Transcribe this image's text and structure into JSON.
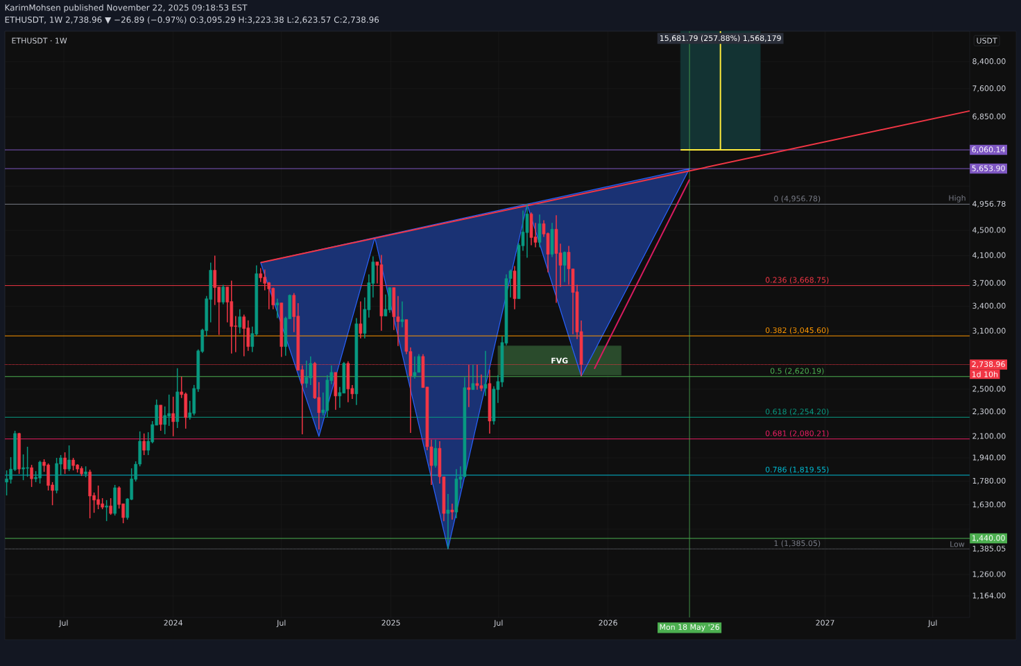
{
  "chart_data": {
    "type": "candlestick",
    "title": "KarimMohsen published November 22, 2025 09:18:53 EST",
    "subtitle": "ETHUSDT, 1W  2,738.96 ▼ −26.89 (−0.97%) O:3,095.29 H:3,223.38 L:2,623.57 C:2,738.96",
    "x": [
      "2023-03-27",
      "2023-04-03",
      "2023-04-10",
      "2023-04-17",
      "2023-04-24",
      "2023-05-01",
      "2023-05-08",
      "2023-05-15",
      "2023-05-22",
      "2023-05-29",
      "2023-06-05",
      "2023-06-12",
      "2023-06-19",
      "2023-06-26",
      "2023-07-03",
      "2023-07-10",
      "2023-07-17",
      "2023-07-24",
      "2023-07-31",
      "2023-08-07",
      "2023-08-14",
      "2023-08-21",
      "2023-08-28",
      "2023-09-04",
      "2023-09-11",
      "2023-09-18",
      "2023-09-25",
      "2023-10-02",
      "2023-10-09",
      "2023-10-16",
      "2023-10-23",
      "2023-10-30",
      "2023-11-06",
      "2023-11-13",
      "2023-11-20",
      "2023-11-27",
      "2023-12-04",
      "2023-12-11",
      "2023-12-18",
      "2023-12-25",
      "2024-01-01",
      "2024-01-08",
      "2024-01-15",
      "2024-01-22",
      "2024-01-29",
      "2024-02-05",
      "2024-02-12",
      "2024-02-19",
      "2024-02-26",
      "2024-03-04",
      "2024-03-11",
      "2024-03-18",
      "2024-03-25",
      "2024-04-01",
      "2024-04-08",
      "2024-04-15",
      "2024-04-22",
      "2024-04-29",
      "2024-05-06",
      "2024-05-13",
      "2024-05-20",
      "2024-05-27",
      "2024-06-03",
      "2024-06-10",
      "2024-06-17",
      "2024-06-24",
      "2024-07-01",
      "2024-07-08",
      "2024-07-15",
      "2024-07-22",
      "2024-07-29",
      "2024-08-05",
      "2024-08-12",
      "2024-08-19",
      "2024-08-26",
      "2024-09-02",
      "2024-09-09",
      "2024-09-16",
      "2024-09-23",
      "2024-09-30",
      "2024-10-07",
      "2024-10-14",
      "2024-10-21",
      "2024-10-28",
      "2024-11-04",
      "2024-11-11",
      "2024-11-18",
      "2024-11-25",
      "2024-12-02",
      "2024-12-09",
      "2024-12-16",
      "2024-12-23",
      "2024-12-30",
      "2025-01-06",
      "2025-01-13",
      "2025-01-20",
      "2025-01-27",
      "2025-02-03",
      "2025-02-10",
      "2025-02-17",
      "2025-02-24",
      "2025-03-03",
      "2025-03-10",
      "2025-03-17",
      "2025-03-24",
      "2025-03-31",
      "2025-04-07",
      "2025-04-14",
      "2025-04-21",
      "2025-04-28",
      "2025-05-05",
      "2025-05-12",
      "2025-05-19",
      "2025-05-26",
      "2025-06-02",
      "2025-06-09",
      "2025-06-16",
      "2025-06-23",
      "2025-06-30",
      "2025-07-07",
      "2025-07-14",
      "2025-07-21",
      "2025-07-28",
      "2025-08-04",
      "2025-08-11",
      "2025-08-18",
      "2025-08-25",
      "2025-09-01",
      "2025-09-08",
      "2025-09-15",
      "2025-09-22",
      "2025-09-29",
      "2025-10-06",
      "2025-10-13",
      "2025-10-20",
      "2025-10-27",
      "2025-11-03",
      "2025-11-10",
      "2025-11-17"
    ],
    "ohlc": [
      [
        1773,
        1852,
        1688,
        1795
      ],
      [
        1791,
        1945,
        1764,
        1861
      ],
      [
        1857,
        2144,
        1847,
        2123
      ],
      [
        2123,
        2128,
        1828,
        1861
      ],
      [
        1861,
        1965,
        1786,
        1871
      ],
      [
        1866,
        2021,
        1809,
        1871
      ],
      [
        1871,
        1890,
        1742,
        1795
      ],
      [
        1795,
        1847,
        1773,
        1805
      ],
      [
        1800,
        1920,
        1764,
        1910
      ],
      [
        1910,
        1930,
        1842,
        1885
      ],
      [
        1890,
        1900,
        1719,
        1751
      ],
      [
        1755,
        1773,
        1628,
        1719
      ],
      [
        1719,
        1940,
        1701,
        1900
      ],
      [
        1895,
        1960,
        1818,
        1940
      ],
      [
        1940,
        1980,
        1828,
        1861
      ],
      [
        1861,
        2031,
        1847,
        1925
      ],
      [
        1925,
        1940,
        1852,
        1885
      ],
      [
        1890,
        1895,
        1837,
        1861
      ],
      [
        1866,
        1880,
        1814,
        1828
      ],
      [
        1828,
        1880,
        1805,
        1842
      ],
      [
        1842,
        1857,
        1551,
        1684
      ],
      [
        1688,
        1706,
        1583,
        1659
      ],
      [
        1663,
        1751,
        1604,
        1632
      ],
      [
        1637,
        1671,
        1604,
        1616
      ],
      [
        1616,
        1659,
        1535,
        1624
      ],
      [
        1624,
        1671,
        1571,
        1579
      ],
      [
        1579,
        1755,
        1567,
        1737
      ],
      [
        1737,
        1746,
        1608,
        1632
      ],
      [
        1637,
        1637,
        1523,
        1555
      ],
      [
        1555,
        1671,
        1543,
        1667
      ],
      [
        1663,
        1866,
        1659,
        1795
      ],
      [
        1791,
        1915,
        1777,
        1895
      ],
      [
        1895,
        2139,
        1880,
        2063
      ],
      [
        2063,
        2123,
        1960,
        1995
      ],
      [
        1995,
        2133,
        1960,
        2063
      ],
      [
        2057,
        2222,
        2047,
        2194
      ],
      [
        2188,
        2407,
        2188,
        2358
      ],
      [
        2358,
        2358,
        2144,
        2194
      ],
      [
        2194,
        2346,
        2117,
        2269
      ],
      [
        2263,
        2451,
        2183,
        2286
      ],
      [
        2286,
        2432,
        2101,
        2217
      ],
      [
        2217,
        2702,
        2166,
        2476
      ],
      [
        2476,
        2620,
        2420,
        2451
      ],
      [
        2457,
        2470,
        2161,
        2251
      ],
      [
        2251,
        2395,
        2234,
        2292
      ],
      [
        2286,
        2540,
        2269,
        2508
      ],
      [
        2502,
        2897,
        2476,
        2882
      ],
      [
        2875,
        3128,
        2860,
        3113
      ],
      [
        3105,
        3530,
        3041,
        3494
      ],
      [
        3485,
        3994,
        3202,
        3883
      ],
      [
        3883,
        4098,
        3414,
        3641
      ],
      [
        3650,
        3650,
        3057,
        3450
      ],
      [
        3450,
        3679,
        3423,
        3650
      ],
      [
        3650,
        3650,
        3202,
        3450
      ],
      [
        3459,
        3736,
        2853,
        3153
      ],
      [
        3161,
        3277,
        2868,
        3153
      ],
      [
        3145,
        3361,
        3073,
        3269
      ],
      [
        3269,
        3294,
        2824,
        3129
      ],
      [
        3137,
        3227,
        2882,
        2927
      ],
      [
        2927,
        3153,
        2868,
        3073
      ],
      [
        3065,
        3954,
        3049,
        3834
      ],
      [
        3834,
        3913,
        3717,
        3775
      ],
      [
        3785,
        3893,
        3604,
        3698
      ],
      [
        3708,
        3717,
        3361,
        3623
      ],
      [
        3632,
        3641,
        3361,
        3414
      ],
      [
        3414,
        3494,
        3252,
        3441
      ],
      [
        3441,
        3441,
        2817,
        2927
      ],
      [
        2927,
        3269,
        2831,
        3252
      ],
      [
        3244,
        3549,
        3244,
        3540
      ],
      [
        3540,
        3567,
        3089,
        3269
      ],
      [
        3277,
        3437,
        2681,
        2681
      ],
      [
        2688,
        2730,
        2117,
        2554
      ],
      [
        2554,
        2780,
        2515,
        2613
      ],
      [
        2606,
        2823,
        2540,
        2751
      ],
      [
        2751,
        2765,
        2413,
        2420
      ],
      [
        2426,
        2567,
        2155,
        2292
      ],
      [
        2292,
        2470,
        2269,
        2316
      ],
      [
        2310,
        2634,
        2257,
        2587
      ],
      [
        2580,
        2730,
        2547,
        2661
      ],
      [
        2661,
        2661,
        2316,
        2438
      ],
      [
        2438,
        2521,
        2334,
        2470
      ],
      [
        2464,
        2765,
        2464,
        2751
      ],
      [
        2751,
        2773,
        2383,
        2502
      ],
      [
        2508,
        2540,
        2413,
        2457
      ],
      [
        2457,
        3252,
        2358,
        3185
      ],
      [
        3185,
        3459,
        3018,
        3073
      ],
      [
        3073,
        3512,
        3018,
        3361
      ],
      [
        3353,
        3823,
        3260,
        3708
      ],
      [
        3698,
        4088,
        3512,
        4004
      ],
      [
        4004,
        4004,
        3698,
        3954
      ],
      [
        3964,
        4109,
        3105,
        3277
      ],
      [
        3277,
        3549,
        3277,
        3361
      ],
      [
        3353,
        3641,
        3319,
        3641
      ],
      [
        3641,
        3641,
        3113,
        3269
      ],
      [
        3269,
        3530,
        2934,
        3210
      ],
      [
        3210,
        3459,
        3145,
        3235
      ],
      [
        3235,
        3235,
        2846,
        2875
      ],
      [
        2875,
        2919,
        2127,
        2627
      ],
      [
        2627,
        2823,
        2600,
        2661
      ],
      [
        2661,
        2846,
        2661,
        2823
      ],
      [
        2823,
        2846,
        2515,
        2515
      ],
      [
        2521,
        2521,
        1995,
        2021
      ],
      [
        2021,
        2074,
        1755,
        1885
      ],
      [
        1885,
        2074,
        1871,
        2010
      ],
      [
        2010,
        2063,
        1764,
        1809
      ],
      [
        1809,
        1809,
        1535,
        1579
      ],
      [
        1579,
        1697,
        1385.05,
        1600
      ],
      [
        1600,
        1637,
        1543,
        1587
      ],
      [
        1587,
        1861,
        1551,
        1795
      ],
      [
        1791,
        1880,
        1733,
        1809
      ],
      [
        1809,
        2613,
        1809,
        2515
      ],
      [
        2515,
        2737,
        2340,
        2496
      ],
      [
        2496,
        2737,
        2496,
        2554
      ],
      [
        2554,
        2737,
        2496,
        2534
      ],
      [
        2534,
        2640,
        2483,
        2508
      ],
      [
        2508,
        2882,
        2438,
        2547
      ],
      [
        2554,
        2688,
        2122,
        2222
      ],
      [
        2222,
        2528,
        2194,
        2502
      ],
      [
        2496,
        2634,
        2377,
        2573
      ],
      [
        2567,
        3041,
        2521,
        2972
      ],
      [
        2964,
        3823,
        2942,
        3765
      ],
      [
        3765,
        3893,
        3512,
        3873
      ],
      [
        3873,
        3944,
        3361,
        3494
      ],
      [
        3494,
        4293,
        3494,
        4260
      ],
      [
        4249,
        4841,
        4172,
        4474
      ],
      [
        4462,
        4956.78,
        4067,
        4782
      ],
      [
        4782,
        4808,
        4260,
        4381
      ],
      [
        4393,
        4625,
        4227,
        4304
      ],
      [
        4304,
        4770,
        4227,
        4613
      ],
      [
        4613,
        4672,
        4393,
        4438
      ],
      [
        4450,
        4462,
        3853,
        4119
      ],
      [
        4119,
        4625,
        4077,
        4519
      ],
      [
        4519,
        4757,
        3441,
        4130
      ],
      [
        4141,
        4282,
        3651,
        3954
      ],
      [
        3954,
        4162,
        3717,
        4151
      ],
      [
        4151,
        4249,
        3679,
        3903
      ],
      [
        3903,
        3903,
        3065,
        3576
      ],
      [
        3586,
        3679,
        3010,
        3089
      ],
      [
        3095.29,
        3223.38,
        2623.57,
        2738.96
      ]
    ],
    "series": [
      {
        "type": "area",
        "color": "#2962ff",
        "x": [
          "2024-05-27",
          "2024-09-02",
          "2024-12-05",
          "2025-04-07",
          "2025-08-18",
          "2025-11-17",
          "2026-05-18"
        ],
        "values": [
          3994,
          2100,
          4380,
          1385.05,
          4956.78,
          2623.57,
          5653.9
        ]
      },
      {
        "type": "line",
        "color": "#2a4b2c",
        "x": [
          "2025-06-30",
          "2026-01-23"
        ],
        "values": [
          null,
          null
        ],
        "lower": [
          2634,
          2634
        ],
        "upper": [
          2934,
          2934
        ]
      },
      {
        "type": "line",
        "color": "#133333",
        "x": [
          "2026-05-03",
          "2026-09-14"
        ],
        "values": [
          null,
          null
        ],
        "lower": [
          6060.14,
          6060.14
        ],
        "upper": [
          9400,
          9400
        ]
      },
      {
        "type": "line",
        "color": "#ffeb3b",
        "x": [
          "2026-05-03",
          "2026-09-14"
        ],
        "values": [
          6060.14,
          6060.14
        ]
      },
      {
        "type": "line",
        "color": "#ffeb3b",
        "x": [
          "2026-07-09",
          "2026-07-09"
        ],
        "values": [
          6060.14,
          9400
        ]
      },
      {
        "type": "line",
        "color": "#f23645",
        "x": [
          "2024-05-27",
          "2027-09-01"
        ],
        "values": [
          3994,
          7000
        ]
      },
      {
        "type": "line",
        "color": "#d81b60",
        "x": [
          "2025-12-09",
          "2026-05-18"
        ],
        "values": [
          2695,
          5430
        ]
      }
    ],
    "xlim": [
      "2023-03-24",
      "2027-09-01"
    ],
    "ylim": [
      1075,
      9400
    ],
    "log": true,
    "grid": true,
    "xticks": [
      {
        "value": "2023-07-01",
        "label": "Jul"
      },
      {
        "value": "2024-01-01",
        "label": "2024"
      },
      {
        "value": "2024-07-01",
        "label": "Jul"
      },
      {
        "value": "2025-01-01",
        "label": "2025"
      },
      {
        "value": "2025-07-01",
        "label": "Jul"
      },
      {
        "value": "2026-01-01",
        "label": "2026"
      },
      {
        "value": "2027-01-01",
        "label": "2027"
      },
      {
        "value": "2027-07-01",
        "label": "Jul"
      }
    ],
    "yticks": [
      {
        "value": 1164,
        "label": "1,164.00"
      },
      {
        "value": 1260,
        "label": "1,260.00"
      },
      {
        "value": 1385.05,
        "label": "1,385.05"
      },
      {
        "value": 1490,
        "label": null
      },
      {
        "value": 1630,
        "label": "1,630.00"
      },
      {
        "value": 1780,
        "label": "1,780.00"
      },
      {
        "value": 1940,
        "label": "1,940.00"
      },
      {
        "value": 2100,
        "label": "2,100.00"
      },
      {
        "value": 2300,
        "label": "2,300.00"
      },
      {
        "value": 2500,
        "label": "2,500.00"
      },
      {
        "value": 3100,
        "label": "3,100.00"
      },
      {
        "value": 3400,
        "label": "3,400.00"
      },
      {
        "value": 3700,
        "label": "3,700.00"
      },
      {
        "value": 4100,
        "label": "4,100.00"
      },
      {
        "value": 4500,
        "label": "4,500.00"
      },
      {
        "value": 4956.78,
        "label": "4,956.78"
      },
      {
        "value": 5300,
        "label": null
      },
      {
        "value": 6850,
        "label": "6,850.00"
      },
      {
        "value": 7600,
        "label": "7,600.00"
      },
      {
        "value": 8400,
        "label": "8,400.00"
      }
    ],
    "ref_lines": [
      {
        "axis": "y",
        "value": 6060.14,
        "label": "6,060.14",
        "color": "#7e57c2"
      },
      {
        "axis": "y",
        "value": 5653.9,
        "label": "5,653.90",
        "color": "#7e57c2"
      },
      {
        "axis": "y",
        "value": 4956.78,
        "color": "#787b86"
      },
      {
        "axis": "y",
        "value": 3668.75,
        "color": "#f23645"
      },
      {
        "axis": "y",
        "value": 3045.6,
        "color": "#ff9800"
      },
      {
        "axis": "y",
        "value": 2738.96,
        "label": "2,738.96",
        "color": "#f23645",
        "line_style": "dotted"
      },
      {
        "axis": "y",
        "value": 2620.19,
        "color": "#4caf50"
      },
      {
        "axis": "y",
        "value": 2254.2,
        "color": "#089981"
      },
      {
        "axis": "y",
        "value": 2080.21,
        "color": "#e91e63"
      },
      {
        "axis": "y",
        "value": 1819.55,
        "color": "#00bcd4"
      },
      {
        "axis": "y",
        "value": 1440,
        "label": "1,440.00",
        "color": "#4caf50"
      },
      {
        "axis": "y",
        "value": 1385.05,
        "color": "#787b86",
        "line_style": "dotted"
      },
      {
        "axis": "x",
        "value": "2026-05-18",
        "label": "Mon 18 May '26",
        "color": "#4caf50"
      }
    ],
    "annotations": [
      "ETHUSDT · 1W",
      "USDT",
      {
        "text": "15,681.79 (257.88%) 1,568,179",
        "x": "2026-07-09",
        "y": 9150
      },
      {
        "text": "0 (4,956.78)",
        "x": "2026-11-15",
        "y": 4956.78
      },
      {
        "text": "0.236 (3,668.75)",
        "x": "2026-11-15",
        "y": 3668.75
      },
      {
        "text": "0.382 (3,045.60)",
        "x": "2026-11-15",
        "y": 3045.6
      },
      {
        "text": "0.5 (2,620.19)",
        "x": "2026-11-15",
        "y": 2620.19
      },
      {
        "text": "0.618 (2,254.20)",
        "x": "2026-11-15",
        "y": 2254.2
      },
      {
        "text": "0.681 (2,080.21)",
        "x": "2026-11-15",
        "y": 2080.21
      },
      {
        "text": "0.786 (1,819.55)",
        "x": "2026-11-15",
        "y": 1819.55
      },
      {
        "text": "1 (1,385.05)",
        "x": "2026-11-15",
        "y": 1385.05
      },
      {
        "text": "High",
        "x": "2027-08-11",
        "y": 4956.78
      },
      {
        "text": "Low",
        "x": "2027-08-11",
        "y": 1385.05
      },
      "1d 10h",
      "FVG"
    ]
  }
}
